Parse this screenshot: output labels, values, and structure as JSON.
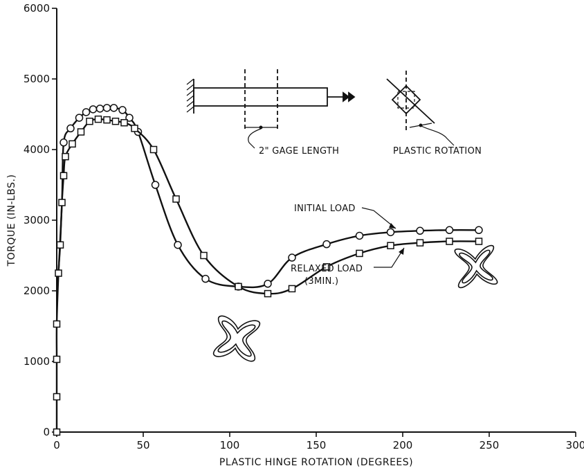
{
  "chart_data": {
    "type": "line",
    "xlabel": "PLASTIC HINGE ROTATION (DEGREES)",
    "ylabel": "TORQUE (IN-LBS.)",
    "xlim": [
      0,
      300
    ],
    "ylim": [
      0,
      6000
    ],
    "xticks": [
      "0",
      "50",
      "100",
      "150",
      "200",
      "250",
      "300"
    ],
    "yticks": [
      "0",
      "1000",
      "2000",
      "3000",
      "4000",
      "5000",
      "6000"
    ],
    "grid": false,
    "series": [
      {
        "name": "INITIAL LOAD",
        "marker": "circle",
        "x": [
          4,
          8,
          13,
          17,
          21,
          25,
          29,
          33,
          38,
          42,
          47,
          57,
          70,
          86,
          105,
          122,
          136,
          156,
          175,
          193,
          210,
          227,
          244
        ],
        "y": [
          4100,
          4300,
          4450,
          4530,
          4570,
          4580,
          4590,
          4590,
          4560,
          4450,
          4250,
          3500,
          2650,
          2170,
          2060,
          2100,
          2470,
          2660,
          2780,
          2830,
          2850,
          2860,
          2860
        ]
      },
      {
        "name": "RELAXED LOAD (3MIN.)",
        "marker": "square",
        "x": [
          0,
          0,
          0,
          0,
          1,
          2,
          3,
          4,
          5,
          9,
          14,
          19,
          24,
          29,
          34,
          39,
          45,
          56,
          69,
          85,
          105,
          122,
          136,
          156,
          175,
          193,
          210,
          227,
          244
        ],
        "y": [
          0,
          500,
          1030,
          1530,
          2250,
          2650,
          3250,
          3630,
          3900,
          4080,
          4250,
          4400,
          4430,
          4420,
          4400,
          4380,
          4300,
          4000,
          3300,
          2500,
          2060,
          1960,
          2030,
          2340,
          2530,
          2640,
          2680,
          2700,
          2700
        ]
      }
    ],
    "annotations": [
      {
        "text": "2\" GAGE LENGTH"
      },
      {
        "text": "PLASTIC ROTATION"
      },
      {
        "text": "INITIAL LOAD"
      },
      {
        "text": "RELAXED LOAD"
      },
      {
        "text": "(3MIN.)"
      }
    ]
  }
}
